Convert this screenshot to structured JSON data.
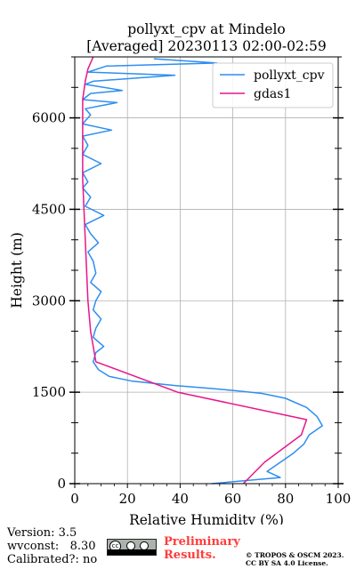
{
  "chart_data": {
    "type": "line",
    "title": "pollyxt_cpv at Mindelo",
    "subtitle": "[Averaged] 20230113 02:00-02:59",
    "xlabel": "Relative Humidity (%)",
    "ylabel": "Height (m)",
    "xlim": [
      0,
      100
    ],
    "ylim": [
      0,
      7000
    ],
    "xticks": [
      0,
      20,
      40,
      60,
      80,
      100
    ],
    "yticks": [
      0,
      1500,
      3000,
      4500,
      6000
    ],
    "grid": true,
    "legend_position": "top-right",
    "series": [
      {
        "name": "pollyxt_cpv",
        "color": "#2e8ef0",
        "x": [
          52,
          78,
          73,
          78,
          83,
          87,
          89,
          94,
          92,
          88,
          80,
          71,
          60,
          49,
          38,
          22,
          13,
          9,
          7,
          8,
          11,
          7,
          8,
          10,
          7,
          8,
          10,
          6,
          8,
          7,
          5,
          9,
          6,
          4,
          11,
          4,
          6,
          3,
          5,
          3,
          10,
          3,
          5,
          3,
          14,
          3,
          6,
          4,
          16,
          3,
          6,
          18,
          4,
          7,
          38,
          5,
          12,
          54,
          30
        ],
        "y": [
          0,
          100,
          200,
          350,
          500,
          650,
          800,
          950,
          1100,
          1250,
          1400,
          1480,
          1530,
          1570,
          1610,
          1680,
          1760,
          1870,
          2000,
          2150,
          2250,
          2400,
          2550,
          2700,
          2850,
          3000,
          3150,
          3300,
          3450,
          3650,
          3800,
          3950,
          4100,
          4250,
          4400,
          4550,
          4700,
          4850,
          4950,
          5100,
          5250,
          5400,
          5550,
          5700,
          5800,
          5900,
          6050,
          6150,
          6250,
          6300,
          6400,
          6450,
          6550,
          6600,
          6700,
          6750,
          6850,
          6900,
          6970
        ]
      },
      {
        "name": "gdas1",
        "color": "#e8168b",
        "x": [
          64,
          72,
          86,
          88,
          39,
          8,
          6,
          5,
          4,
          3,
          3,
          3,
          4,
          5,
          7
        ],
        "y": [
          0,
          350,
          800,
          1050,
          1500,
          2000,
          2500,
          3000,
          4000,
          5000,
          6000,
          6300,
          6600,
          6800,
          7000
        ]
      }
    ]
  },
  "footer": {
    "version": "Version: 3.5",
    "wvconst": "wvconst:   8.30",
    "calibrated": "Calibrated?: no",
    "preliminary_line1": "Preliminary",
    "preliminary_line2": "Results.",
    "copyright_line1": "© TROPOS & OSCM 2023.",
    "copyright_line2": "CC BY SA 4.0 License.",
    "cc_badge_text": "BY SA"
  }
}
